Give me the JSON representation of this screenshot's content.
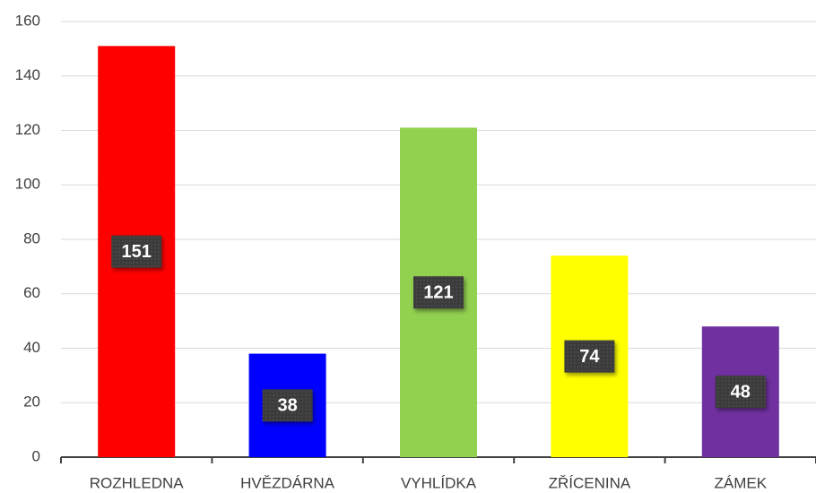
{
  "chart_data": {
    "type": "bar",
    "categories": [
      "ROZHLEDNA",
      "HVĚZDÁRNA",
      "VYHLÍDKA",
      "ZŘÍCENINA",
      "ZÁMEK"
    ],
    "values": [
      151,
      38,
      121,
      74,
      48
    ],
    "colors": [
      "#ff0000",
      "#0000ff",
      "#92d050",
      "#ffff00",
      "#7030a0"
    ],
    "ylim": [
      0,
      160
    ],
    "yticks": [
      0,
      20,
      40,
      60,
      80,
      100,
      120,
      140,
      160
    ],
    "grid": true
  }
}
